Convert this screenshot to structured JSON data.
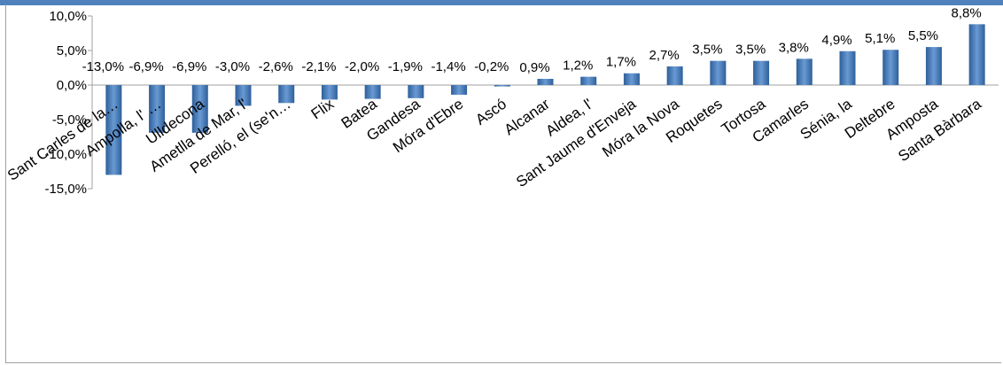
{
  "chart_data": {
    "type": "bar",
    "title": "",
    "xlabel": "",
    "ylabel": "",
    "ylim": [
      -15,
      10
    ],
    "yticks": [
      10,
      5,
      0,
      -5,
      -10,
      -15
    ],
    "ytick_labels": [
      "10,0%",
      "5,0%",
      "0,0%",
      "-5,0%",
      "-10,0%",
      "-15,0%"
    ],
    "categories": [
      "Sant Carles de la…",
      "Ampolla, l' …",
      "Ulldecona",
      "Ametlla de Mar, l'",
      "Perelló, el (se'n…",
      "Flix",
      "Batea",
      "Gandesa",
      "Móra d'Ebre",
      "Ascó",
      "Alcanar",
      "Aldea, l'",
      "Sant Jaume d'Enveja",
      "Móra la Nova",
      "Roquetes",
      "Tortosa",
      "Camarles",
      "Sénia, la",
      "Deltebre",
      "Amposta",
      "Santa Bàrbara"
    ],
    "values": [
      -13.0,
      -6.9,
      -6.9,
      -3.0,
      -2.6,
      -2.1,
      -2.0,
      -1.9,
      -1.4,
      -0.2,
      0.9,
      1.2,
      1.7,
      2.7,
      3.5,
      3.5,
      3.8,
      4.9,
      5.1,
      5.5,
      8.8
    ],
    "data_labels": [
      "-13,0%",
      "-6,9%",
      "-6,9%",
      "-3,0%",
      "-2,6%",
      "-2,1%",
      "-2,0%",
      "-1,9%",
      "-1,4%",
      "-0,2%",
      "0,9%",
      "1,2%",
      "1,7%",
      "2,7%",
      "3,5%",
      "3,5%",
      "3,8%",
      "4,9%",
      "5,1%",
      "5,5%",
      "8,8%"
    ],
    "grid": false,
    "legend": "none",
    "colors": {
      "bar_dark": "#2d5f9a",
      "bar_light": "#6a9ad4",
      "top_bar": "#4f81bd",
      "axis": "#a0a0a0"
    }
  }
}
